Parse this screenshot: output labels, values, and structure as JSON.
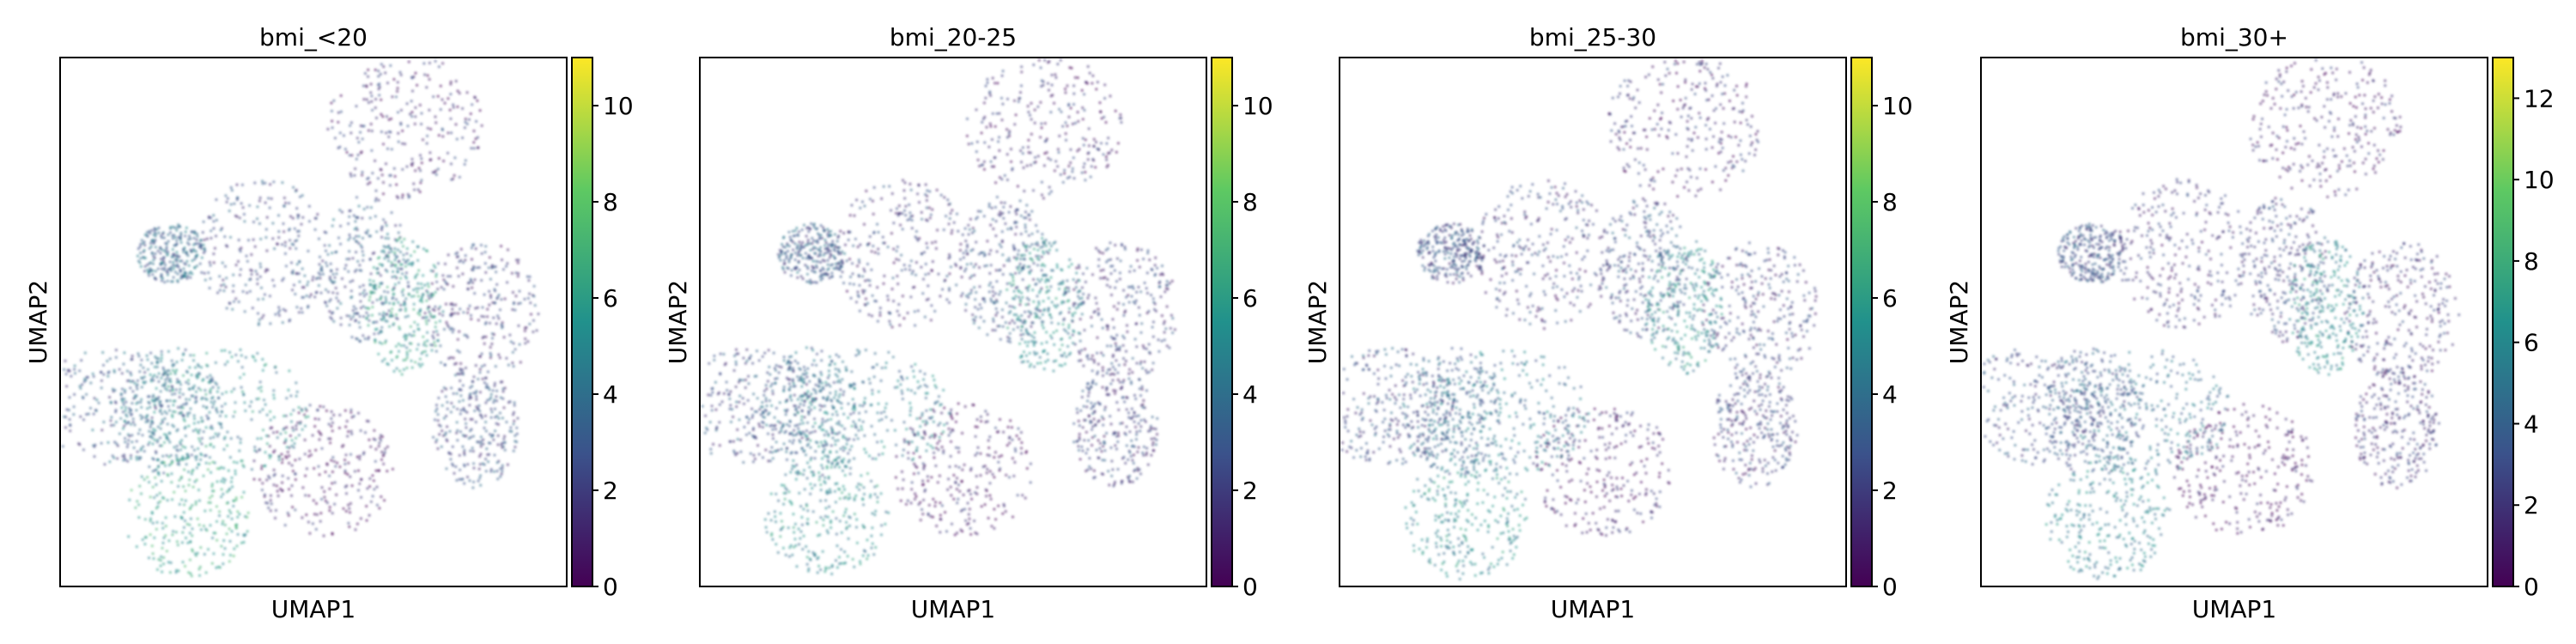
{
  "figure": {
    "panels": [
      {
        "title": "bmi_<20",
        "xlabel": "UMAP1",
        "ylabel": "UMAP2",
        "colorbar_max": 11,
        "colorbar_ticks": [
          0,
          2,
          4,
          6,
          8,
          10
        ]
      },
      {
        "title": "bmi_20-25",
        "xlabel": "UMAP1",
        "ylabel": "UMAP2",
        "colorbar_max": 11,
        "colorbar_ticks": [
          0,
          2,
          4,
          6,
          8,
          10
        ]
      },
      {
        "title": "bmi_25-30",
        "xlabel": "UMAP1",
        "ylabel": "UMAP2",
        "colorbar_max": 11,
        "colorbar_ticks": [
          0,
          2,
          4,
          6,
          8,
          10
        ]
      },
      {
        "title": "bmi_30+",
        "xlabel": "UMAP1",
        "ylabel": "UMAP2",
        "colorbar_max": 13,
        "colorbar_ticks": [
          0,
          2,
          4,
          6,
          8,
          10,
          12
        ]
      }
    ],
    "colormap": [
      "#440154",
      "#3b528b",
      "#21918c",
      "#5ec962",
      "#fde725"
    ]
  },
  "chart_data": [
    {
      "type": "scatter",
      "title": "bmi_<20",
      "xlabel": "UMAP1",
      "ylabel": "UMAP2",
      "colorbar": {
        "range": [
          0,
          11
        ],
        "ticks": [
          0,
          2,
          4,
          6,
          8,
          10
        ]
      },
      "clusters": [
        {
          "x": 0.22,
          "y": 0.63,
          "value": 3.5
        },
        {
          "x": 0.4,
          "y": 0.63,
          "value": 2.5
        },
        {
          "x": 0.6,
          "y": 0.6,
          "value": 3.0
        },
        {
          "x": 0.68,
          "y": 0.87,
          "value": 1.5
        },
        {
          "x": 0.83,
          "y": 0.52,
          "value": 2.0
        },
        {
          "x": 0.68,
          "y": 0.53,
          "value": 5.5
        },
        {
          "x": 0.52,
          "y": 0.22,
          "value": 1.0
        },
        {
          "x": 0.22,
          "y": 0.33,
          "value": 4.0
        },
        {
          "x": 0.33,
          "y": 0.33,
          "value": 5.0
        },
        {
          "x": 0.25,
          "y": 0.13,
          "value": 6.0
        },
        {
          "x": 0.82,
          "y": 0.3,
          "value": 2.5
        },
        {
          "x": 0.1,
          "y": 0.34,
          "value": 3.0
        }
      ]
    },
    {
      "type": "scatter",
      "title": "bmi_20-25",
      "xlabel": "UMAP1",
      "ylabel": "UMAP2",
      "colorbar": {
        "range": [
          0,
          11
        ],
        "ticks": [
          0,
          2,
          4,
          6,
          8,
          10
        ]
      },
      "clusters": [
        {
          "x": 0.22,
          "y": 0.63,
          "value": 3.0
        },
        {
          "x": 0.4,
          "y": 0.63,
          "value": 2.0
        },
        {
          "x": 0.6,
          "y": 0.6,
          "value": 2.5
        },
        {
          "x": 0.68,
          "y": 0.87,
          "value": 1.5
        },
        {
          "x": 0.83,
          "y": 0.52,
          "value": 2.0
        },
        {
          "x": 0.68,
          "y": 0.53,
          "value": 5.0
        },
        {
          "x": 0.52,
          "y": 0.22,
          "value": 1.0
        },
        {
          "x": 0.22,
          "y": 0.33,
          "value": 3.5
        },
        {
          "x": 0.33,
          "y": 0.33,
          "value": 4.5
        },
        {
          "x": 0.25,
          "y": 0.13,
          "value": 5.0
        },
        {
          "x": 0.82,
          "y": 0.3,
          "value": 2.0
        },
        {
          "x": 0.1,
          "y": 0.34,
          "value": 2.5
        }
      ]
    },
    {
      "type": "scatter",
      "title": "bmi_25-30",
      "xlabel": "UMAP1",
      "ylabel": "UMAP2",
      "colorbar": {
        "range": [
          0,
          11
        ],
        "ticks": [
          0,
          2,
          4,
          6,
          8,
          10
        ]
      },
      "clusters": [
        {
          "x": 0.22,
          "y": 0.63,
          "value": 2.5
        },
        {
          "x": 0.4,
          "y": 0.63,
          "value": 2.0
        },
        {
          "x": 0.6,
          "y": 0.6,
          "value": 2.5
        },
        {
          "x": 0.68,
          "y": 0.87,
          "value": 1.5
        },
        {
          "x": 0.83,
          "y": 0.52,
          "value": 2.0
        },
        {
          "x": 0.68,
          "y": 0.53,
          "value": 5.0
        },
        {
          "x": 0.52,
          "y": 0.22,
          "value": 1.0
        },
        {
          "x": 0.22,
          "y": 0.33,
          "value": 3.5
        },
        {
          "x": 0.33,
          "y": 0.33,
          "value": 4.0
        },
        {
          "x": 0.25,
          "y": 0.13,
          "value": 5.0
        },
        {
          "x": 0.82,
          "y": 0.3,
          "value": 2.0
        },
        {
          "x": 0.1,
          "y": 0.34,
          "value": 2.5
        }
      ]
    },
    {
      "type": "scatter",
      "title": "bmi_30+",
      "xlabel": "UMAP1",
      "ylabel": "UMAP2",
      "colorbar": {
        "range": [
          0,
          13
        ],
        "ticks": [
          0,
          2,
          4,
          6,
          8,
          10,
          12
        ]
      },
      "clusters": [
        {
          "x": 0.22,
          "y": 0.63,
          "value": 3.0
        },
        {
          "x": 0.4,
          "y": 0.63,
          "value": 2.0
        },
        {
          "x": 0.6,
          "y": 0.6,
          "value": 2.5
        },
        {
          "x": 0.68,
          "y": 0.87,
          "value": 1.5
        },
        {
          "x": 0.83,
          "y": 0.52,
          "value": 2.0
        },
        {
          "x": 0.68,
          "y": 0.53,
          "value": 6.0
        },
        {
          "x": 0.52,
          "y": 0.22,
          "value": 1.0
        },
        {
          "x": 0.22,
          "y": 0.33,
          "value": 3.5
        },
        {
          "x": 0.33,
          "y": 0.33,
          "value": 4.5
        },
        {
          "x": 0.25,
          "y": 0.13,
          "value": 5.5
        },
        {
          "x": 0.82,
          "y": 0.3,
          "value": 2.0
        },
        {
          "x": 0.1,
          "y": 0.34,
          "value": 3.0
        }
      ]
    }
  ]
}
